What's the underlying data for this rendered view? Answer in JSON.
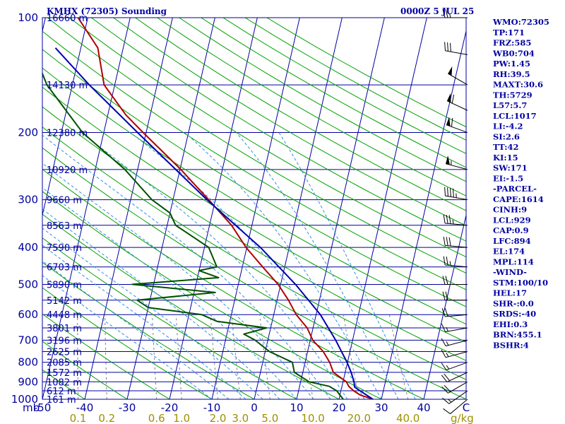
{
  "header": {
    "title": "KMHX (72305) Sounding",
    "time": "0000Z  5 JUL 25"
  },
  "colors": {
    "frame": "#0000a0",
    "isotherm": "#0000a0",
    "dry_adiabat": "#00a000",
    "moist_adiabat": "#3090e0",
    "mixing_ratio": "#808080",
    "temperature": "#b00000",
    "dewpoint": "#005000",
    "parcel": "#0000b0",
    "mixing_ratio_label": "#a09000",
    "wind": "#000000"
  },
  "axis": {
    "pressure_unit": "mb",
    "mixing_ratio_unit": "g/kg",
    "temperature_ticks": [
      "-50",
      "-40",
      "-30",
      "-20",
      "-10",
      "0",
      "10",
      "20",
      "30",
      "40",
      "C"
    ],
    "mixing_ratio_ticks": [
      "0.1",
      "0.2",
      "0.6",
      "1.0",
      "2.0",
      "3.0",
      "5.0",
      "10.0",
      "20.0",
      "40.0"
    ]
  },
  "chart_data": {
    "type": "line",
    "title": "KMHX (72305) Sounding",
    "skew_t": true,
    "pressure_range_mb": [
      1000,
      100
    ],
    "temperature_range_c": [
      -50,
      50
    ],
    "pressure_levels": [
      {
        "p": "100",
        "hgt": "16660 m"
      },
      {
        "p": "",
        "hgt": "14130 m"
      },
      {
        "p": "200",
        "hgt": "12380 m"
      },
      {
        "p": "",
        "hgt": "10920 m"
      },
      {
        "p": "300",
        "hgt": "9660 m"
      },
      {
        "p": "",
        "hgt": "8563 m"
      },
      {
        "p": "400",
        "hgt": "7590 m"
      },
      {
        "p": "",
        "hgt": "6703 m"
      },
      {
        "p": "500",
        "hgt": "5890 m"
      },
      {
        "p": "",
        "hgt": "5142 m"
      },
      {
        "p": "600",
        "hgt": "4448 m"
      },
      {
        "p": "",
        "hgt": "3801 m"
      },
      {
        "p": "700",
        "hgt": "3196 m"
      },
      {
        "p": "",
        "hgt": "2625 m"
      },
      {
        "p": "800",
        "hgt": "2085 m"
      },
      {
        "p": "",
        "hgt": "1572 m"
      },
      {
        "p": "900",
        "hgt": "1082 m"
      },
      {
        "p": "",
        "hgt": "612 m"
      },
      {
        "p": "1000",
        "hgt": "161 m"
      }
    ],
    "series": [
      {
        "key": "temperature",
        "points": [
          [
            1000,
            28
          ],
          [
            975,
            24.8
          ],
          [
            950,
            23
          ],
          [
            925,
            21.6
          ],
          [
            900,
            20.8
          ],
          [
            850,
            17.2
          ],
          [
            800,
            15.8
          ],
          [
            750,
            13.7
          ],
          [
            700,
            10.6
          ],
          [
            650,
            8.6
          ],
          [
            600,
            5.3
          ],
          [
            550,
            2.7
          ],
          [
            500,
            -0.6
          ],
          [
            450,
            -5.2
          ],
          [
            400,
            -10.2
          ],
          [
            350,
            -14.8
          ],
          [
            300,
            -21.6
          ],
          [
            250,
            -29.8
          ],
          [
            200,
            -40.7
          ],
          [
            180,
            -45.7
          ],
          [
            150,
            -52.5
          ],
          [
            120,
            -56.0
          ],
          [
            100,
            -62.3
          ]
        ]
      },
      {
        "key": "dewpoint",
        "points": [
          [
            1000,
            21
          ],
          [
            975,
            20
          ],
          [
            950,
            19
          ],
          [
            925,
            17
          ],
          [
            900,
            12
          ],
          [
            850,
            8
          ],
          [
            800,
            7
          ],
          [
            750,
            1
          ],
          [
            700,
            -3
          ],
          [
            675,
            -6
          ],
          [
            650,
            -1
          ],
          [
            625,
            -13
          ],
          [
            600,
            -17
          ],
          [
            575,
            -30
          ],
          [
            550,
            -33
          ],
          [
            525,
            -15
          ],
          [
            500,
            -35
          ],
          [
            480,
            -15
          ],
          [
            460,
            -20
          ],
          [
            450,
            -16
          ],
          [
            400,
            -19
          ],
          [
            350,
            -28
          ],
          [
            325,
            -30
          ],
          [
            300,
            -35
          ],
          [
            250,
            -43
          ],
          [
            200,
            -55
          ],
          [
            150,
            -66
          ],
          [
            100,
            -76
          ]
        ]
      },
      {
        "key": "parcel",
        "points": [
          [
            1000,
            28
          ],
          [
            950,
            24.5
          ],
          [
            929,
            23.0
          ],
          [
            900,
            22.6
          ],
          [
            850,
            21.4
          ],
          [
            800,
            19.9
          ],
          [
            700,
            16.0
          ],
          [
            600,
            11.0
          ],
          [
            500,
            3.5
          ],
          [
            400,
            -6.8
          ],
          [
            300,
            -22
          ],
          [
            200,
            -42
          ],
          [
            150,
            -56
          ],
          [
            120,
            -66
          ]
        ]
      }
    ],
    "winds": [
      {
        "p": 1000,
        "dir": 230,
        "spd": 10
      },
      {
        "p": 950,
        "dir": 235,
        "spd": 15
      },
      {
        "p": 900,
        "dir": 240,
        "spd": 20
      },
      {
        "p": 850,
        "dir": 245,
        "spd": 20
      },
      {
        "p": 800,
        "dir": 250,
        "spd": 15
      },
      {
        "p": 750,
        "dir": 255,
        "spd": 15
      },
      {
        "p": 700,
        "dir": 255,
        "spd": 15
      },
      {
        "p": 650,
        "dir": 260,
        "spd": 15
      },
      {
        "p": 600,
        "dir": 265,
        "spd": 20
      },
      {
        "p": 550,
        "dir": 270,
        "spd": 20
      },
      {
        "p": 500,
        "dir": 270,
        "spd": 20
      },
      {
        "p": 450,
        "dir": 275,
        "spd": 25
      },
      {
        "p": 400,
        "dir": 275,
        "spd": 30
      },
      {
        "p": 350,
        "dir": 275,
        "spd": 35
      },
      {
        "p": 300,
        "dir": 280,
        "spd": 45
      },
      {
        "p": 250,
        "dir": 285,
        "spd": 55
      },
      {
        "p": 200,
        "dir": 290,
        "spd": 60
      },
      {
        "p": 175,
        "dir": 295,
        "spd": 60
      },
      {
        "p": 150,
        "dir": 300,
        "spd": 50
      },
      {
        "p": 125,
        "dir": 280,
        "spd": 30
      },
      {
        "p": 100,
        "dir": 270,
        "spd": 25
      }
    ]
  },
  "indices": [
    "WMO:72305",
    "TP:171",
    "FRZ:585",
    "WB0:704",
    "PW:1.45",
    "RH:39.5",
    "MAXT:30.6",
    "TH:5729",
    "L57:5.7",
    "LCL:1017",
    "LI:-4.2",
    "SI:2.6",
    "TT:42",
    "KI:15",
    "SW:171",
    "EI:-1.5",
    "-PARCEL-",
    "CAPE:1614",
    "CINH:9",
    "LCL:929",
    "CAP:0.9",
    "LFC:894",
    "EL:174",
    "MPL:114",
    "-WIND-",
    "STM:100/10",
    "HEL:17",
    "SHR-:0.0",
    "SRDS:-40",
    "EHI:0.3",
    "BRN:455.1",
    "BSHR:4"
  ]
}
